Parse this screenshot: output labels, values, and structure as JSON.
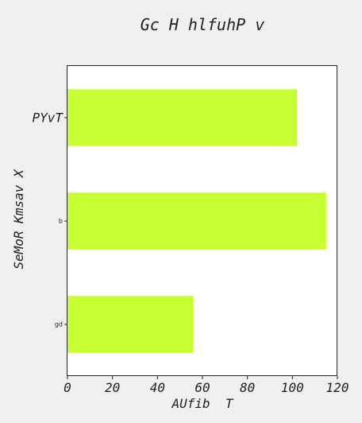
{
  "chart_data": {
    "type": "bar",
    "orientation": "horizontal",
    "title": "Gc H hlfuhP v",
    "xlabel": "AUfib  T",
    "ylabel": "SeMoR Kmsav X",
    "categories": [
      "PYvT",
      "b",
      "gd"
    ],
    "values": [
      102,
      115,
      56
    ],
    "xlim": [
      0,
      120
    ],
    "xticks": [
      0,
      20,
      40,
      60,
      80,
      100,
      120
    ],
    "bar_color": "#c8ff33",
    "grid": false,
    "legend": "none"
  }
}
